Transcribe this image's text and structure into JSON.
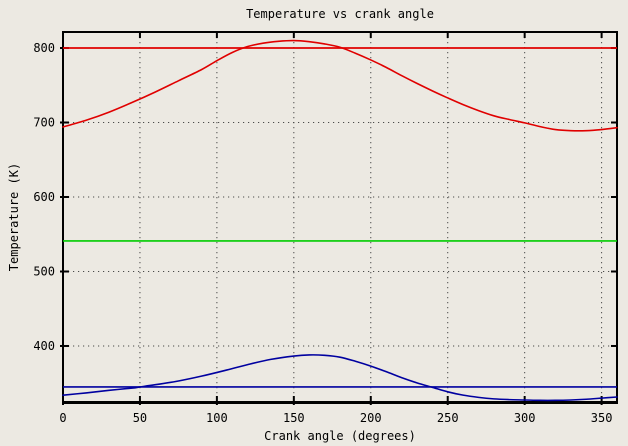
{
  "colors": {
    "background": "#ece9e2",
    "frame": "#000000",
    "grid": "#4a4a4a",
    "text": "#000000",
    "red": "#e00000",
    "green": "#00cc00",
    "blue": "#0000a0"
  },
  "chart_data": {
    "type": "line",
    "title": "Temperature vs crank angle",
    "xlabel": "Crank angle (degrees)",
    "ylabel": "Temperature (K)",
    "xlim": [
      0,
      360
    ],
    "ylim": [
      324.8,
      821.5
    ],
    "xticks": [
      0,
      50,
      100,
      150,
      200,
      250,
      300,
      350
    ],
    "yticks": [
      400,
      500,
      600,
      700,
      800
    ],
    "grid": true,
    "legend": false,
    "series": [
      {
        "name": "red-curve",
        "color_key": "red",
        "kind": "curve",
        "points": [
          [
            0,
            694
          ],
          [
            15,
            703
          ],
          [
            30,
            714
          ],
          [
            45,
            727
          ],
          [
            60,
            741
          ],
          [
            75,
            756
          ],
          [
            90,
            771
          ],
          [
            100,
            783
          ],
          [
            110,
            794
          ],
          [
            120,
            802
          ],
          [
            130,
            806.5
          ],
          [
            140,
            809
          ],
          [
            150,
            810
          ],
          [
            160,
            808.5
          ],
          [
            170,
            805.5
          ],
          [
            180,
            801
          ],
          [
            190,
            793
          ],
          [
            200,
            784
          ],
          [
            210,
            774
          ],
          [
            220,
            763
          ],
          [
            230,
            752.5
          ],
          [
            240,
            742.5
          ],
          [
            250,
            733
          ],
          [
            260,
            724
          ],
          [
            270,
            716
          ],
          [
            280,
            709
          ],
          [
            290,
            704
          ],
          [
            300,
            699.5
          ],
          [
            310,
            694.5
          ],
          [
            320,
            690.5
          ],
          [
            330,
            689
          ],
          [
            340,
            689
          ],
          [
            350,
            690.5
          ],
          [
            360,
            693
          ]
        ]
      },
      {
        "name": "red-constant-line",
        "color_key": "red",
        "kind": "hline",
        "value": 800
      },
      {
        "name": "green-constant-line",
        "color_key": "green",
        "kind": "hline",
        "value": 541
      },
      {
        "name": "blue-constant-line",
        "color_key": "blue",
        "kind": "hline",
        "value": 345
      },
      {
        "name": "blue-curve",
        "color_key": "blue",
        "kind": "curve",
        "points": [
          [
            0,
            334
          ],
          [
            15,
            337
          ],
          [
            30,
            340.5
          ],
          [
            45,
            343.5
          ],
          [
            50,
            345
          ],
          [
            60,
            348
          ],
          [
            75,
            353
          ],
          [
            90,
            359.5
          ],
          [
            105,
            367
          ],
          [
            120,
            375
          ],
          [
            135,
            382
          ],
          [
            150,
            386.5
          ],
          [
            160,
            388
          ],
          [
            170,
            387.5
          ],
          [
            180,
            385
          ],
          [
            190,
            379.5
          ],
          [
            200,
            373
          ],
          [
            210,
            365.5
          ],
          [
            220,
            357.5
          ],
          [
            230,
            350.5
          ],
          [
            240,
            344.5
          ],
          [
            250,
            338.5
          ],
          [
            260,
            334
          ],
          [
            270,
            331
          ],
          [
            280,
            329
          ],
          [
            290,
            328
          ],
          [
            300,
            327.5
          ],
          [
            310,
            327
          ],
          [
            320,
            327
          ],
          [
            330,
            327.5
          ],
          [
            340,
            328.5
          ],
          [
            350,
            330
          ],
          [
            360,
            331.5
          ]
        ]
      }
    ]
  }
}
